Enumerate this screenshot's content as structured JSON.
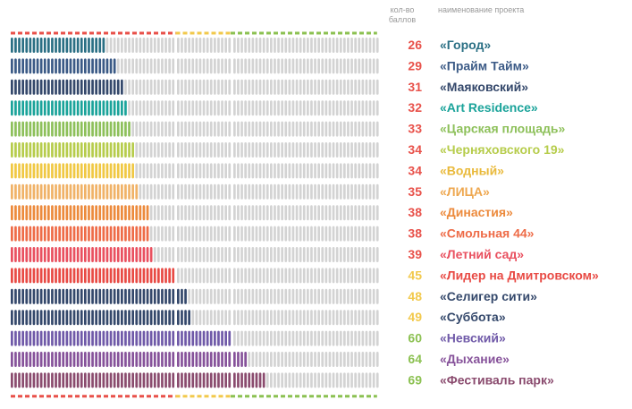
{
  "header": {
    "score_label": "кол-во баллов",
    "name_label": "наименование проекта"
  },
  "chart_data": {
    "type": "bar",
    "title": "",
    "xlabel": "кол-во баллов",
    "ylabel": "наименование проекта",
    "max_score": 100,
    "grid": false,
    "grid_bands": [
      {
        "from": 0,
        "to": 45,
        "color": "#e8514a"
      },
      {
        "from": 45,
        "to": 60,
        "color": "#f2c94c"
      },
      {
        "from": 60,
        "to": 100,
        "color": "#8cc152"
      }
    ],
    "empty_color": "#d3d3d3",
    "rows": [
      {
        "name": "«Город»",
        "score": 26,
        "bar_color": "#2a6f84",
        "score_color": "#e8514a",
        "name_color": "#2a6f84"
      },
      {
        "name": "«Прайм Тайм»",
        "score": 29,
        "bar_color": "#3b5a86",
        "score_color": "#e8514a",
        "name_color": "#3b5a86"
      },
      {
        "name": "«Маяковский»",
        "score": 31,
        "bar_color": "#34486b",
        "score_color": "#e8514a",
        "name_color": "#34486b"
      },
      {
        "name": "«Art Residence»",
        "score": 32,
        "bar_color": "#1aa39a",
        "score_color": "#e8514a",
        "name_color": "#1aa39a"
      },
      {
        "name": "«Царская площадь»",
        "score": 33,
        "bar_color": "#8dc05a",
        "score_color": "#e8514a",
        "name_color": "#8dc05a"
      },
      {
        "name": "«Черняховского 19»",
        "score": 34,
        "bar_color": "#b6cc4b",
        "score_color": "#e8514a",
        "name_color": "#b6cc4b"
      },
      {
        "name": "«Водный»",
        "score": 34,
        "bar_color": "#f0c843",
        "score_color": "#e8514a",
        "name_color": "#e9b93a"
      },
      {
        "name": "«ЛИЦА»",
        "score": 35,
        "bar_color": "#f0b267",
        "score_color": "#e8514a",
        "name_color": "#eea74f"
      },
      {
        "name": "«Династия»",
        "score": 38,
        "bar_color": "#ec8a3c",
        "score_color": "#e8514a",
        "name_color": "#ec8a3c"
      },
      {
        "name": "«Смольная 44»",
        "score": 38,
        "bar_color": "#ee6b47",
        "score_color": "#e8514a",
        "name_color": "#ee6b47"
      },
      {
        "name": "«Летний сад»",
        "score": 39,
        "bar_color": "#e9505f",
        "score_color": "#e8514a",
        "name_color": "#e9505f"
      },
      {
        "name": "«Лидер на Дмитровском»",
        "score": 45,
        "bar_color": "#e84a44",
        "score_color": "#f2c94c",
        "name_color": "#e84a44"
      },
      {
        "name": "«Селигер сити»",
        "score": 48,
        "bar_color": "#34486b",
        "score_color": "#f2c94c",
        "name_color": "#34486b"
      },
      {
        "name": "«Суббота»",
        "score": 49,
        "bar_color": "#34486b",
        "score_color": "#f2c94c",
        "name_color": "#34486b"
      },
      {
        "name": "«Невский»",
        "score": 60,
        "bar_color": "#6f59a8",
        "score_color": "#8cc152",
        "name_color": "#6f59a8"
      },
      {
        "name": "«Дыхание»",
        "score": 64,
        "bar_color": "#86529a",
        "score_color": "#8cc152",
        "name_color": "#86529a"
      },
      {
        "name": "«Фестиваль парк»",
        "score": 69,
        "bar_color": "#8a4b6e",
        "score_color": "#8cc152",
        "name_color": "#8a4b6e"
      }
    ]
  }
}
